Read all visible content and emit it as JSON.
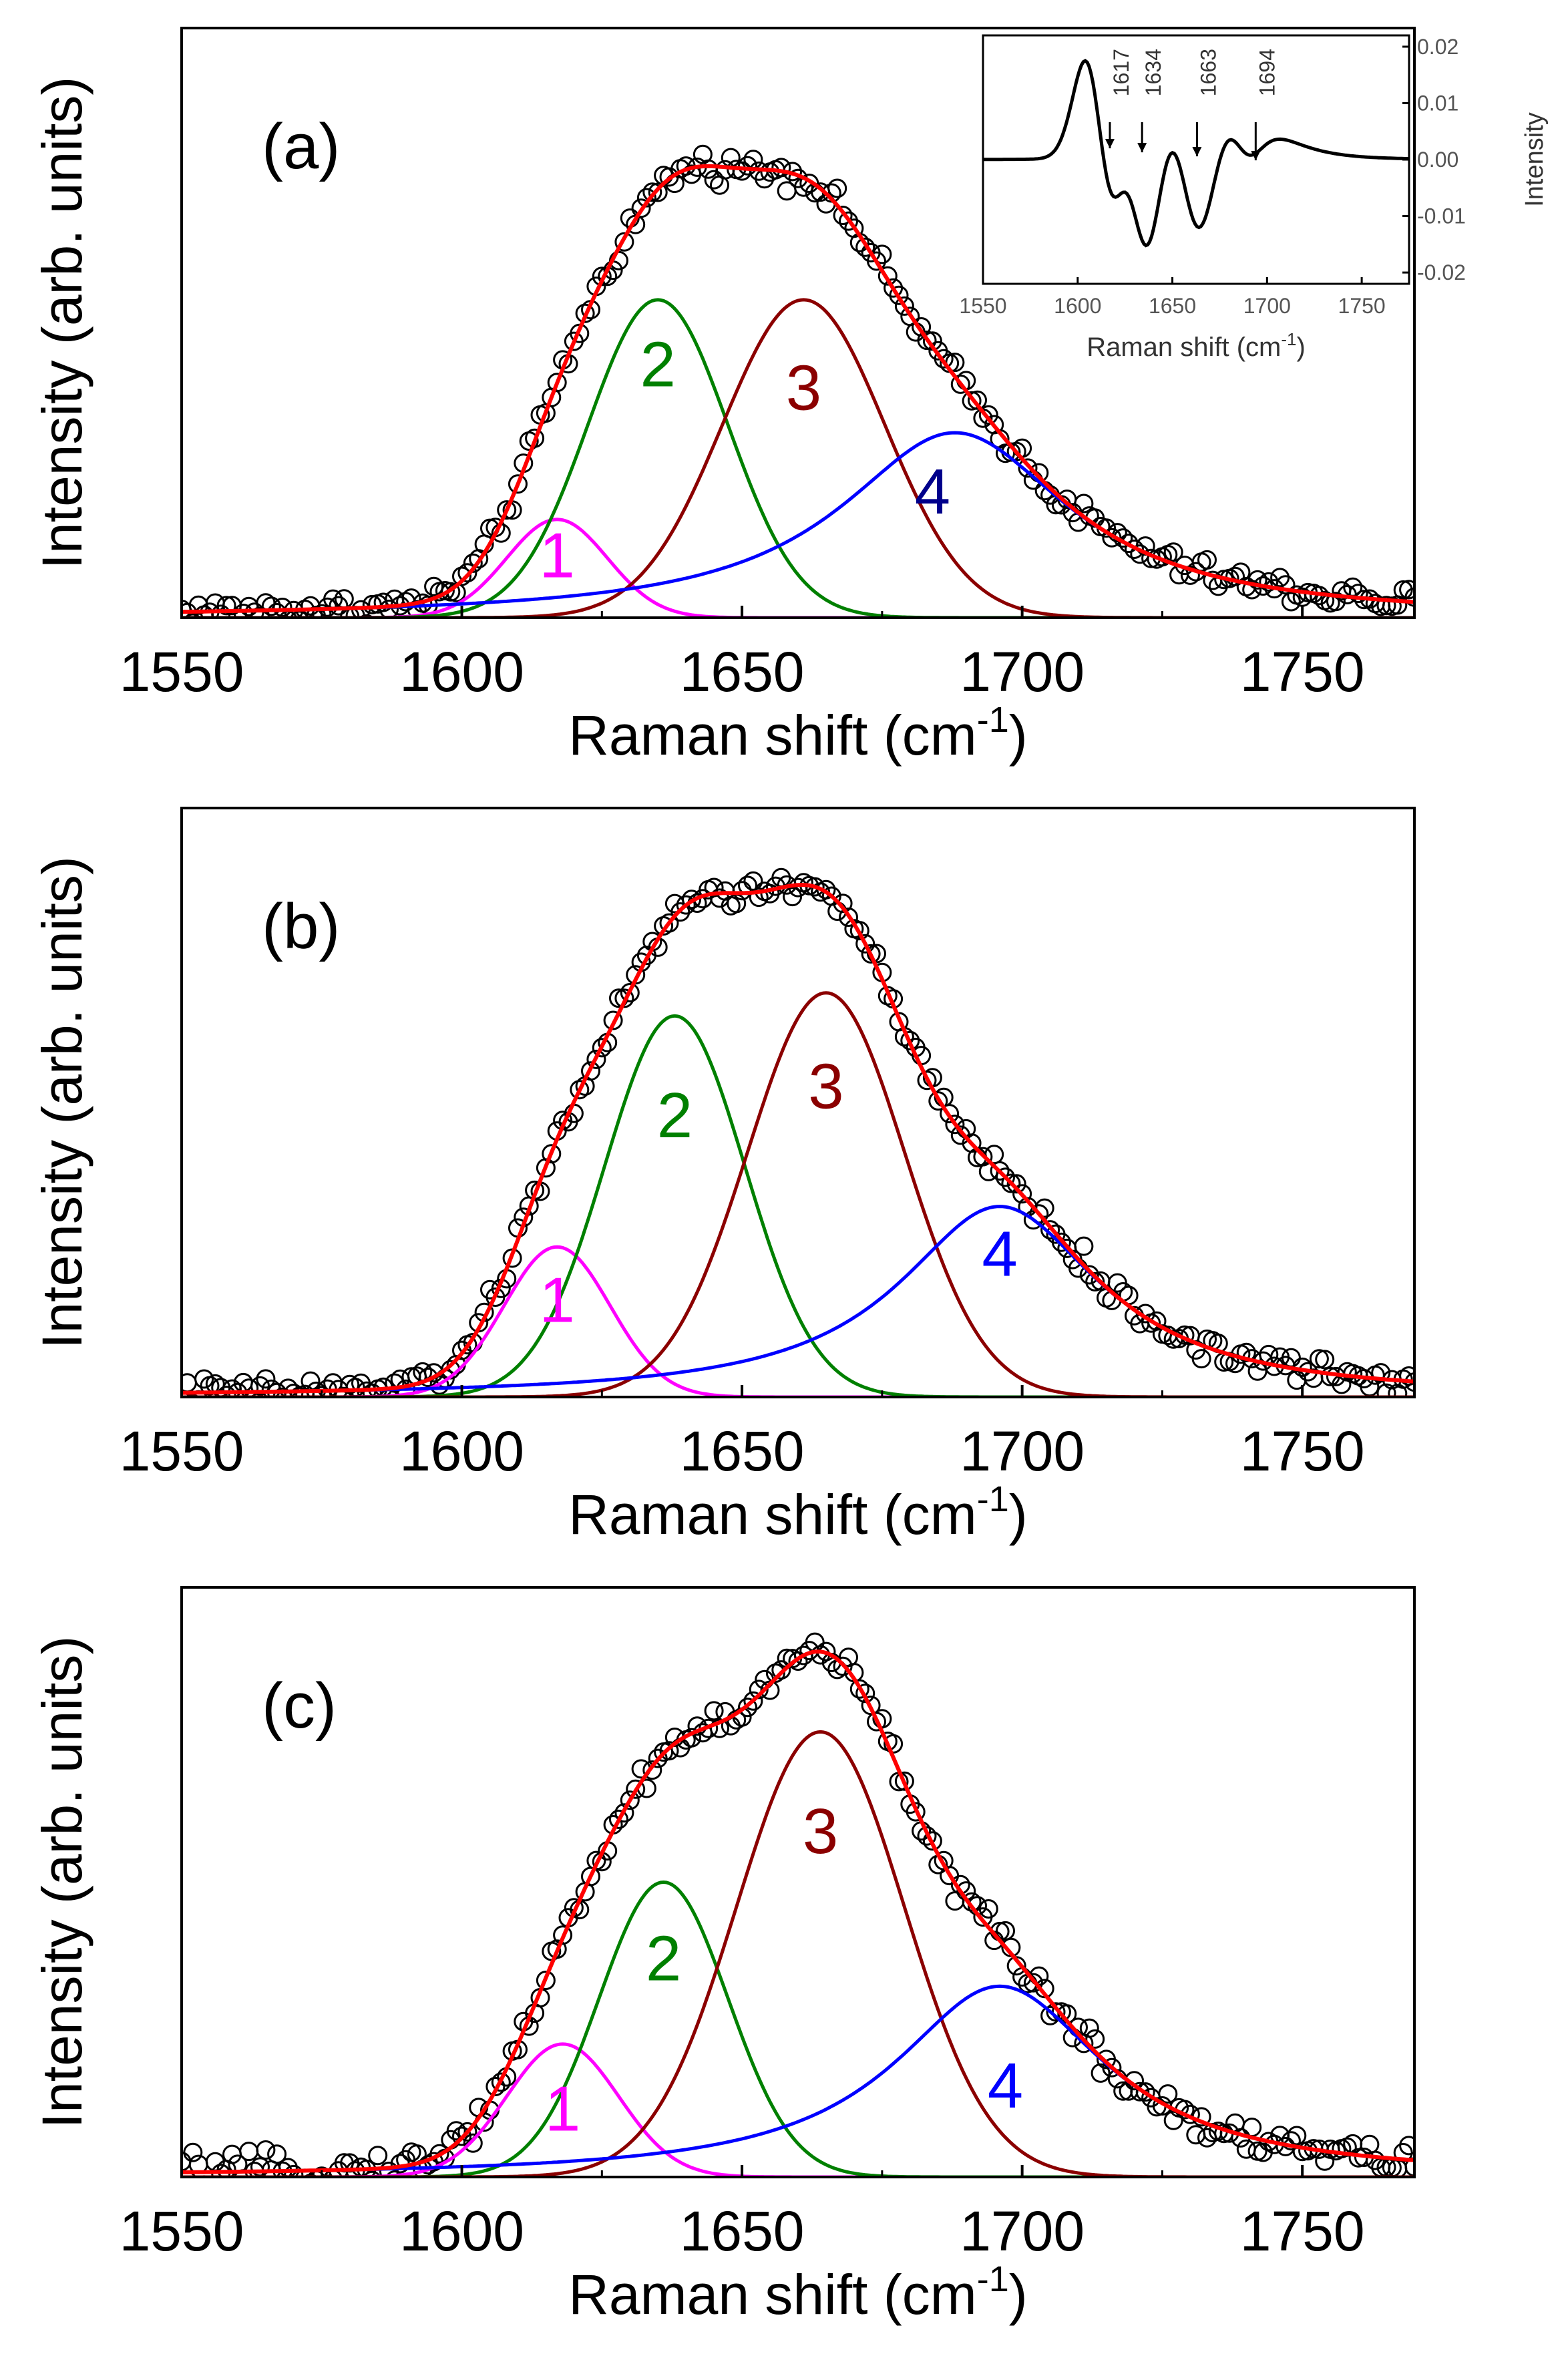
{
  "chart_data": [
    {
      "type": "line",
      "panel_label": "(a)",
      "xlabel": "Raman shift (cm",
      "xlabel_sup": "-1",
      "xlabel_close": ")",
      "ylabel": "Intensity (arb. units)",
      "xlim": [
        1550,
        1770
      ],
      "ylim": [
        0,
        1.02
      ],
      "xticks": [
        1550,
        1600,
        1650,
        1700,
        1750
      ],
      "xtick_labels": [
        "1550",
        "1600",
        "1650",
        "1700",
        "1750"
      ],
      "components": [
        {
          "name": "1",
          "center": 1617,
          "height": 0.17,
          "width": 9.0,
          "shape": "gauss",
          "color": "#ff00ff"
        },
        {
          "name": "2",
          "center": 1635,
          "height": 0.55,
          "width": 12.5,
          "shape": "gauss",
          "color": "#008000"
        },
        {
          "name": "3",
          "center": 1661,
          "height": 0.55,
          "width": 14.5,
          "shape": "gauss",
          "color": "#8b0000"
        },
        {
          "name": "4",
          "center": 1688,
          "height": 0.32,
          "width": 25.0,
          "shape": "lorentz",
          "color": "#0000ff"
        }
      ],
      "fit": {
        "name": "fit",
        "color": "#ff0000"
      },
      "data_series": {
        "name": "measured",
        "marker": "open-circle",
        "noise": 0.012
      },
      "label_positions": {
        "1": [
          1617,
          0.07
        ],
        "2": [
          1635,
          0.4
        ],
        "3": [
          1661,
          0.36
        ],
        "4": [
          1684,
          0.18
        ]
      },
      "label_colors": {
        "1": "#ff00ff",
        "2": "#008000",
        "3": "#8b0000",
        "4": "#00008b"
      },
      "inset": {
        "type": "line",
        "xlabel": "Raman shift (cm",
        "xlabel_sup": "-1",
        "xlabel_close": ")",
        "ylabel": "Intensity",
        "xlim": [
          1550,
          1775
        ],
        "ylim": [
          -0.022,
          0.022
        ],
        "xticks": [
          1550,
          1600,
          1650,
          1700,
          1750
        ],
        "xtick_labels": [
          "1550",
          "1600",
          "1650",
          "1700",
          "1750"
        ],
        "yticks": [
          0.02,
          0.01,
          0.0,
          -0.01,
          -0.02
        ],
        "ytick_labels": [
          "0.02",
          "0.01",
          "0.00",
          "-0.01",
          "-0.02"
        ],
        "annotations": [
          {
            "text": "1617",
            "x": 1617
          },
          {
            "text": "1634",
            "x": 1634
          },
          {
            "text": "1663",
            "x": 1663
          },
          {
            "text": "1694",
            "x": 1694
          }
        ]
      }
    },
    {
      "type": "line",
      "panel_label": "(b)",
      "xlabel": "Raman shift (cm",
      "xlabel_sup": "-1",
      "xlabel_close": ")",
      "ylabel": "Intensity (arb. units)",
      "xlim": [
        1550,
        1770
      ],
      "ylim": [
        0,
        1.02
      ],
      "xticks": [
        1550,
        1600,
        1650,
        1700,
        1750
      ],
      "xtick_labels": [
        "1550",
        "1600",
        "1650",
        "1700",
        "1750"
      ],
      "components": [
        {
          "name": "1",
          "center": 1617,
          "height": 0.26,
          "width": 9.5,
          "shape": "gauss",
          "color": "#ff00ff"
        },
        {
          "name": "2",
          "center": 1638,
          "height": 0.66,
          "width": 12.5,
          "shape": "gauss",
          "color": "#008000"
        },
        {
          "name": "3",
          "center": 1665,
          "height": 0.7,
          "width": 14.0,
          "shape": "gauss",
          "color": "#8b0000"
        },
        {
          "name": "4",
          "center": 1696,
          "height": 0.33,
          "width": 22.0,
          "shape": "lorentz",
          "color": "#0000ff"
        }
      ],
      "fit": {
        "name": "fit",
        "color": "#ff0000"
      },
      "data_series": {
        "name": "measured",
        "marker": "open-circle",
        "noise": 0.012
      },
      "label_positions": {
        "1": [
          1617,
          0.13
        ],
        "2": [
          1638,
          0.45
        ],
        "3": [
          1665,
          0.5
        ],
        "4": [
          1696,
          0.21
        ]
      },
      "label_colors": {
        "1": "#ff00ff",
        "2": "#008000",
        "3": "#8b0000",
        "4": "#0000ff"
      }
    },
    {
      "type": "line",
      "panel_label": "(c)",
      "xlabel": "Raman shift (cm",
      "xlabel_sup": "-1",
      "xlabel_close": ")",
      "ylabel": "Intensity (arb. units)",
      "xlim": [
        1550,
        1770
      ],
      "ylim": [
        0,
        1.02
      ],
      "xticks": [
        1550,
        1600,
        1650,
        1700,
        1750
      ],
      "xtick_labels": [
        "1550",
        "1600",
        "1650",
        "1700",
        "1750"
      ],
      "components": [
        {
          "name": "1",
          "center": 1618,
          "height": 0.23,
          "width": 10.0,
          "shape": "gauss",
          "color": "#ff00ff"
        },
        {
          "name": "2",
          "center": 1636,
          "height": 0.51,
          "width": 11.5,
          "shape": "gauss",
          "color": "#008000"
        },
        {
          "name": "3",
          "center": 1664,
          "height": 0.77,
          "width": 15.0,
          "shape": "gauss",
          "color": "#8b0000"
        },
        {
          "name": "4",
          "center": 1696,
          "height": 0.33,
          "width": 23.0,
          "shape": "lorentz",
          "color": "#0000ff"
        }
      ],
      "fit": {
        "name": "fit",
        "color": "#ff0000"
      },
      "data_series": {
        "name": "measured",
        "marker": "open-circle",
        "noise": 0.014
      },
      "label_positions": {
        "1": [
          1618,
          0.08
        ],
        "2": [
          1636,
          0.34
        ],
        "3": [
          1664,
          0.56
        ],
        "4": [
          1697,
          0.12
        ]
      },
      "label_colors": {
        "1": "#ff00ff",
        "2": "#008000",
        "3": "#8b0000",
        "4": "#0000ff"
      }
    }
  ]
}
